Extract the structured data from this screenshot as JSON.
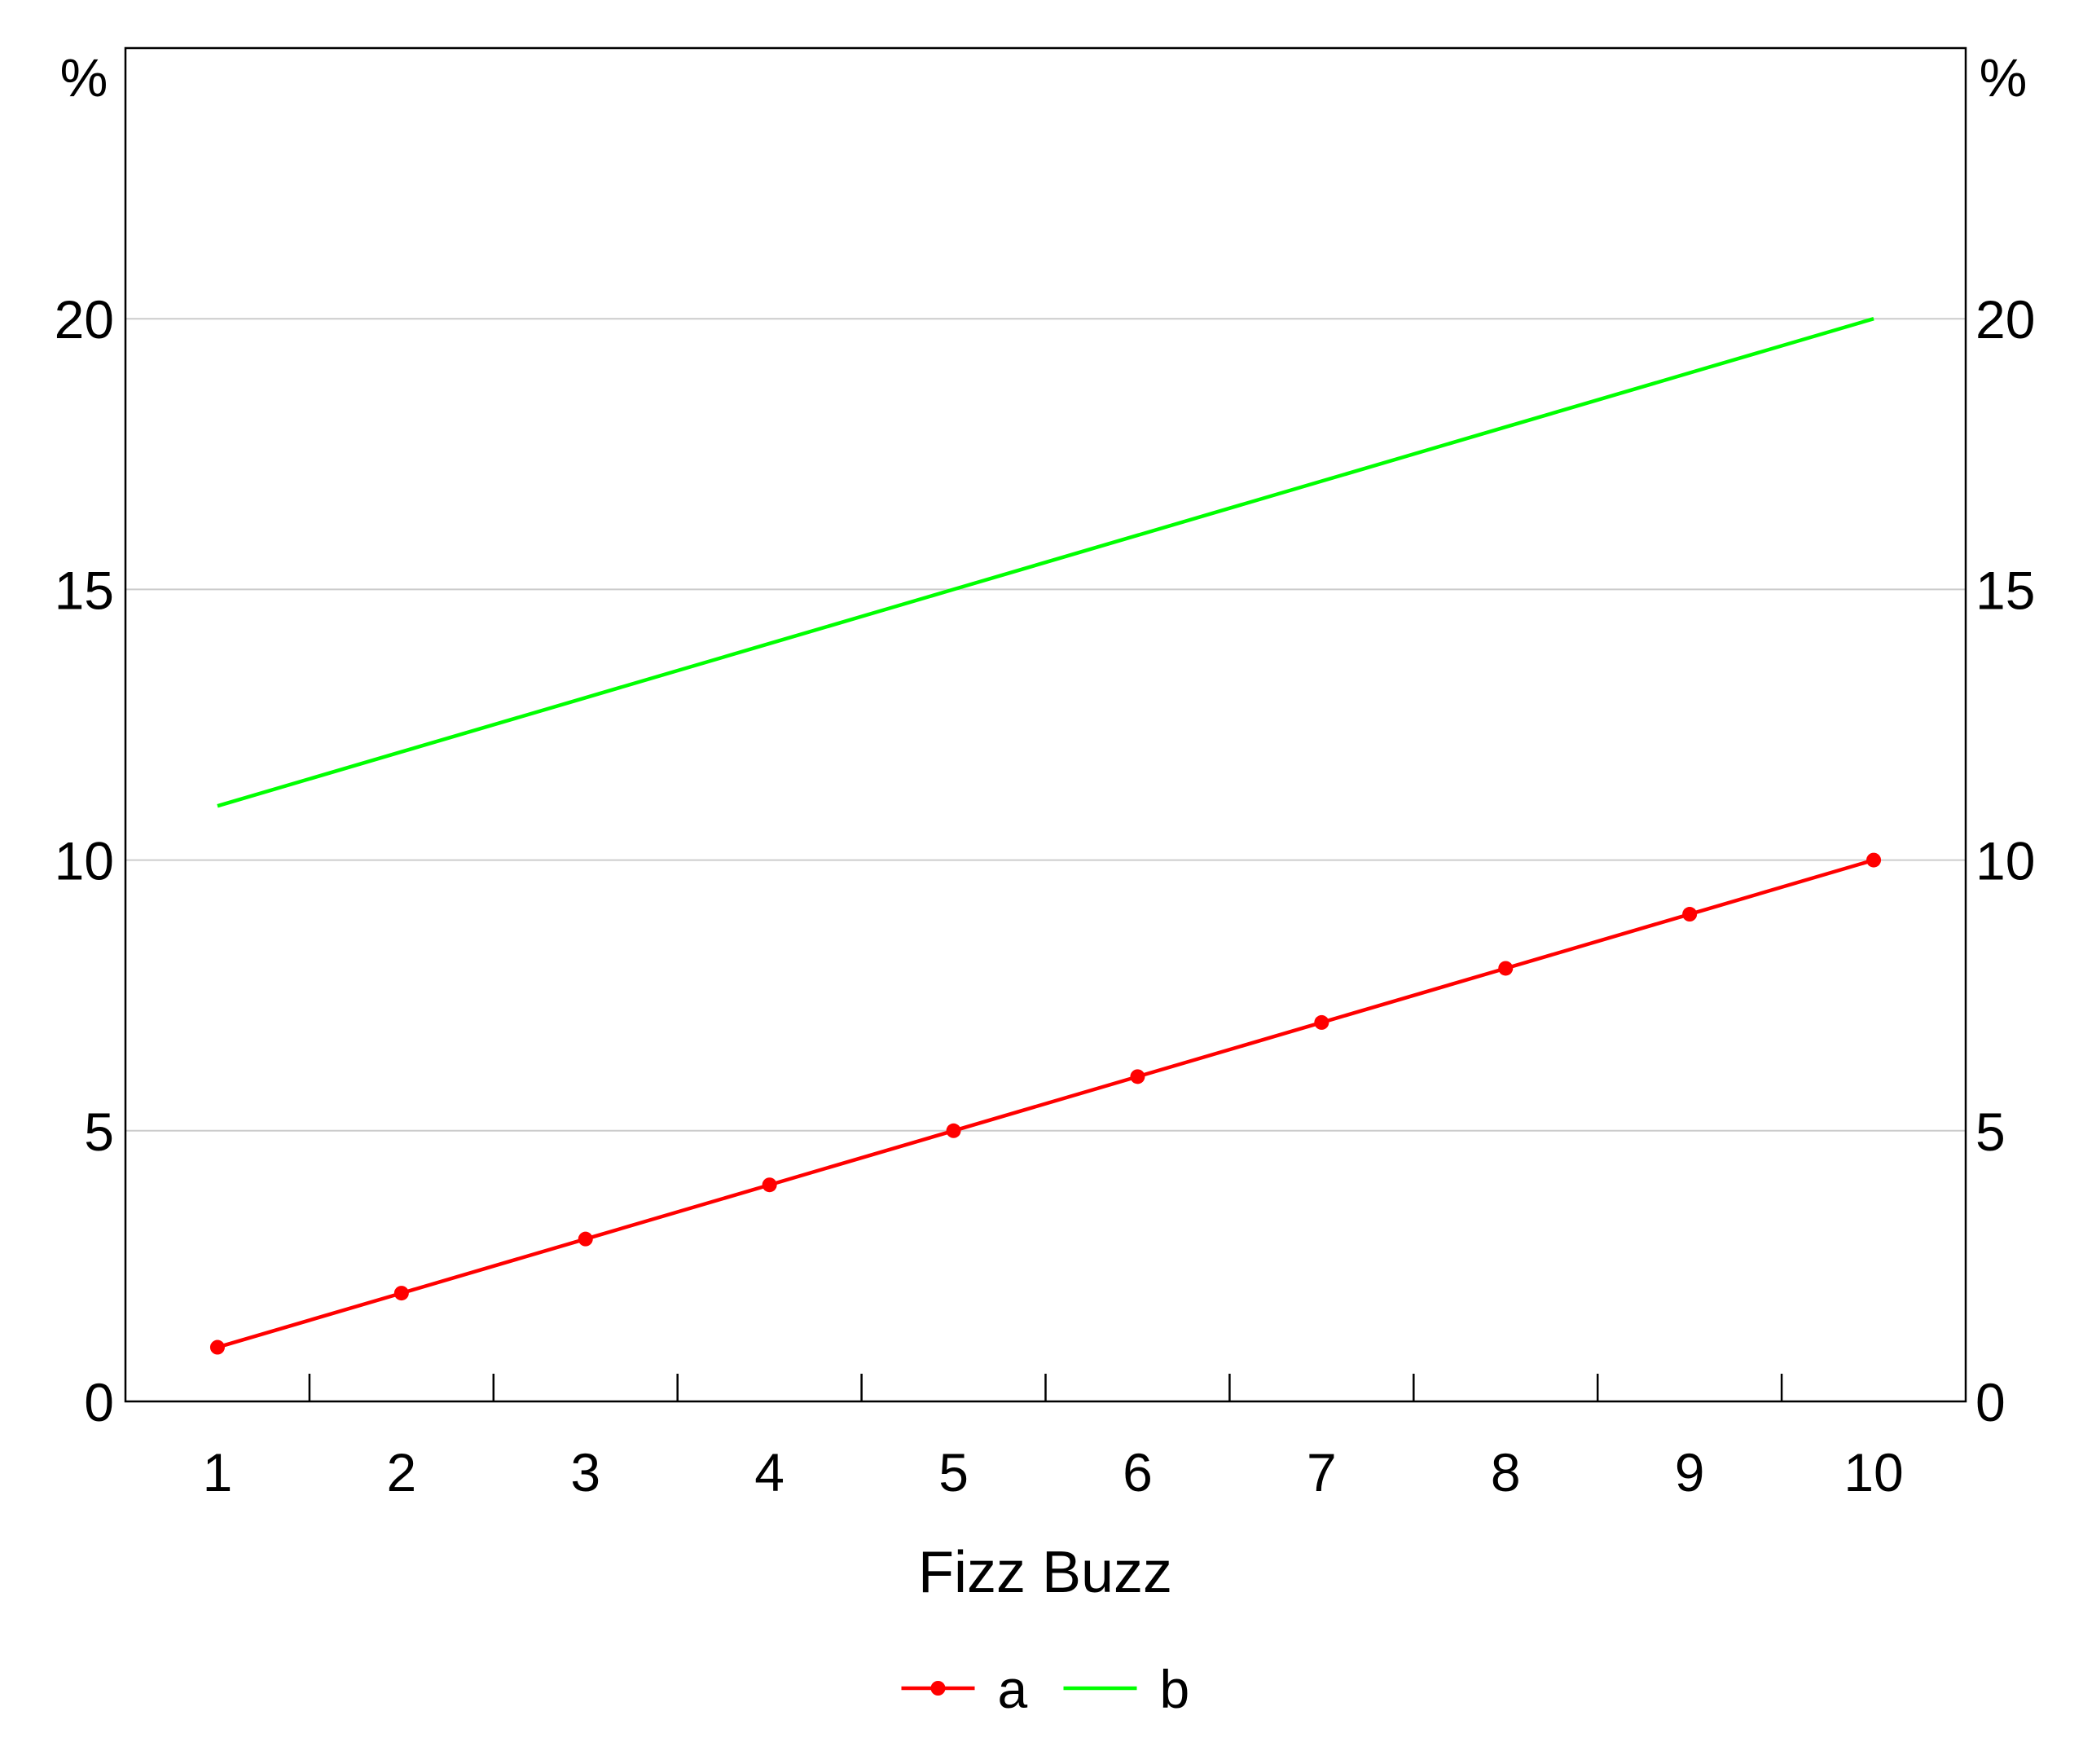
{
  "chart_data": {
    "type": "line",
    "title": "",
    "xlabel": "Fizz Buzz",
    "ylabel_left": "%",
    "ylabel_right": "%",
    "categories": [
      "1",
      "2",
      "3",
      "4",
      "5",
      "6",
      "7",
      "8",
      "9",
      "10"
    ],
    "x": [
      1,
      2,
      3,
      4,
      5,
      6,
      7,
      8,
      9,
      10
    ],
    "ylim": [
      0,
      25
    ],
    "yticks": [
      "0",
      "5",
      "10",
      "15",
      "20"
    ],
    "ytick_values": [
      0,
      5,
      10,
      15,
      20
    ],
    "grid": true,
    "legend": "bottom",
    "series": [
      {
        "name": "a",
        "color": "#ff0000",
        "markers": true,
        "values": [
          1,
          2,
          3,
          4,
          5,
          6,
          7,
          8,
          9,
          10
        ]
      },
      {
        "name": "b",
        "color": "#00ff00",
        "markers": false,
        "values": [
          11,
          12,
          13,
          14,
          15,
          16,
          17,
          18,
          19,
          20
        ]
      }
    ]
  }
}
